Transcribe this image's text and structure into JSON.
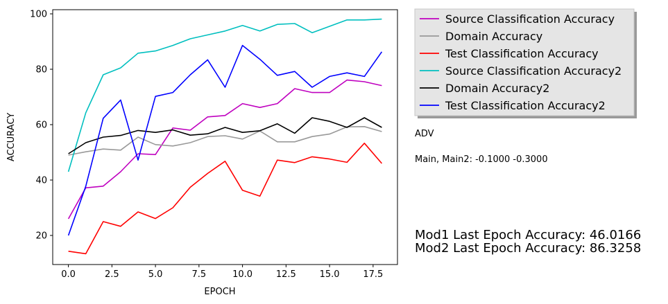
{
  "chart_data": {
    "type": "line",
    "xlabel": "EPOCH",
    "ylabel": "ACCURACY",
    "xlim": [
      -0.9,
      18.9
    ],
    "ylim": [
      9.5,
      101.5
    ],
    "xticks": [
      0,
      2.5,
      5,
      7.5,
      10,
      12.5,
      15,
      17.5
    ],
    "xtick_labels": [
      "0.0",
      "2.5",
      "5.0",
      "7.5",
      "10.0",
      "12.5",
      "15.0",
      "17.5"
    ],
    "yticks": [
      20,
      40,
      60,
      80,
      100
    ],
    "ytick_labels": [
      "20",
      "40",
      "60",
      "80",
      "100"
    ],
    "grid": false,
    "legend_position": "upper-right-outside",
    "x": [
      0,
      1,
      2,
      3,
      4,
      5,
      6,
      7,
      8,
      9,
      10,
      11,
      12,
      13,
      14,
      15,
      16,
      17,
      18
    ],
    "series": [
      {
        "name": "Source Classification Accuracy",
        "color": "#bf00bf",
        "values": [
          26.0,
          37.2,
          37.8,
          43.0,
          49.5,
          49.2,
          58.8,
          58.0,
          62.8,
          63.3,
          67.6,
          66.2,
          67.6,
          73.0,
          71.6,
          71.6,
          76.1,
          75.5,
          74.1
        ]
      },
      {
        "name": "Domain Accuracy",
        "color": "#999999",
        "values": [
          49.0,
          50.2,
          51.2,
          50.8,
          55.5,
          52.8,
          52.3,
          53.5,
          55.7,
          56.0,
          54.8,
          57.7,
          53.8,
          53.8,
          55.7,
          56.6,
          59.2,
          59.3,
          57.5
        ]
      },
      {
        "name": "Test Classification Accuracy",
        "color": "#ff0000",
        "values": [
          14.3,
          13.4,
          25.0,
          23.3,
          28.5,
          26.1,
          30.0,
          37.4,
          42.4,
          46.8,
          36.3,
          34.2,
          47.2,
          46.3,
          48.4,
          47.6,
          46.4,
          53.3,
          46.0
        ]
      },
      {
        "name": "Source Classification Accuracy2",
        "color": "#00bfbf",
        "values": [
          43.0,
          64.3,
          78.0,
          80.5,
          85.8,
          86.6,
          88.6,
          91.0,
          92.4,
          93.8,
          95.8,
          93.8,
          96.2,
          96.5,
          93.2,
          95.5,
          97.8,
          97.8,
          98.1
        ]
      },
      {
        "name": "Domain Accuracy2",
        "color": "#000000",
        "values": [
          49.5,
          53.5,
          55.5,
          56.1,
          57.9,
          57.2,
          58.1,
          56.2,
          56.7,
          59.0,
          57.2,
          57.8,
          60.3,
          56.9,
          62.5,
          61.2,
          59.0,
          62.5,
          59.0
        ]
      },
      {
        "name": "Test Classification Accuracy2",
        "color": "#0000ff",
        "values": [
          20.0,
          37.8,
          62.3,
          68.9,
          47.2,
          70.2,
          71.6,
          78.0,
          83.4,
          73.5,
          88.6,
          83.6,
          77.8,
          79.2,
          73.5,
          77.4,
          78.7,
          77.4,
          86.3
        ]
      }
    ]
  },
  "annotations": {
    "adv": "ADV",
    "main": "Main, Main2: -0.1000 -0.3000",
    "mod1": "Mod1 Last Epoch Accuracy: 46.0166",
    "mod2": "Mod2 Last Epoch Accuracy: 86.3258"
  }
}
